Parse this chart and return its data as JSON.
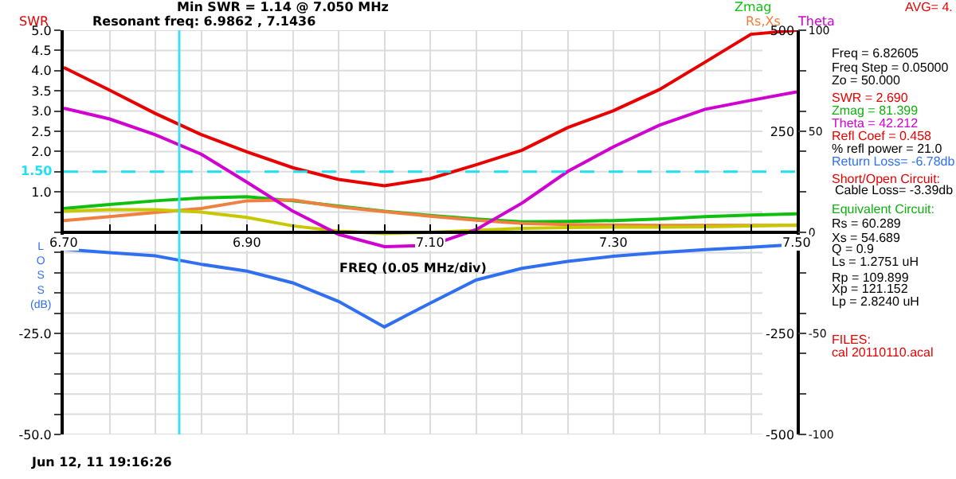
{
  "chart_data": [
    {
      "type": "line",
      "title": "Min SWR = 1.14 @ 7.050 MHz",
      "subtitle": "Resonant freq: 6.9862 , 7.1436",
      "xlabel": "FREQ (0.05 MHz/div)",
      "x": [
        6.7,
        6.75,
        6.8,
        6.85,
        6.9,
        6.95,
        7.0,
        7.05,
        7.1,
        7.15,
        7.2,
        7.25,
        7.3,
        7.35,
        7.4,
        7.45,
        7.5
      ],
      "xlim": [
        6.7,
        7.5
      ],
      "xticks": [
        {
          "value": 6.7,
          "label": "6.70"
        },
        {
          "value": 6.75,
          "label": null
        },
        {
          "value": 6.8,
          "label": null
        },
        {
          "value": 6.85,
          "label": null
        },
        {
          "value": 6.9,
          "label": "6.90"
        },
        {
          "value": 6.95,
          "label": null
        },
        {
          "value": 7.0,
          "label": null
        },
        {
          "value": 7.05,
          "label": null
        },
        {
          "value": 7.1,
          "label": "7.10"
        },
        {
          "value": 7.15,
          "label": null
        },
        {
          "value": 7.2,
          "label": null
        },
        {
          "value": 7.25,
          "label": null
        },
        {
          "value": 7.3,
          "label": "7.30"
        },
        {
          "value": 7.35,
          "label": null
        },
        {
          "value": 7.4,
          "label": null
        },
        {
          "value": 7.45,
          "label": null
        },
        {
          "value": 7.5,
          "label": "7.50"
        }
      ],
      "ylim": [
        0,
        5
      ],
      "yticks": [
        {
          "value": 0,
          "label": null
        },
        {
          "value": 0.5,
          "label": null
        },
        {
          "value": 1,
          "label": "1.0"
        },
        {
          "value": 1.5,
          "label": null
        },
        {
          "value": 2,
          "label": "2.0"
        },
        {
          "value": 2.5,
          "label": "2.5"
        },
        {
          "value": 3,
          "label": "3.0"
        },
        {
          "value": 3.5,
          "label": "3.5"
        },
        {
          "value": 4,
          "label": "4.0"
        },
        {
          "value": 4.5,
          "label": "4.5"
        },
        {
          "value": 5,
          "label": "5.0"
        }
      ],
      "y2lim": [
        -500,
        500
      ],
      "y2ticks": [
        -500,
        {
          "value": -400,
          "label": null
        },
        {
          "value": -300,
          "label": null
        },
        -250,
        {
          "value": -200,
          "label": null
        },
        {
          "value": -100,
          "label": null
        },
        {
          "value": 0,
          "label": null
        },
        {
          "value": 100,
          "label": null
        },
        {
          "value": 200,
          "label": null
        },
        250,
        {
          "value": 300,
          "label": null
        },
        {
          "value": 400,
          "label": null
        },
        500
      ],
      "y3lim": [
        -100,
        100
      ],
      "y3ticks": [
        -100,
        -50,
        0,
        50,
        100
      ],
      "series": [
        {
          "name": "SWR",
          "color": "#e80000",
          "values": [
            4.08,
            3.52,
            2.94,
            2.42,
            1.99,
            1.6,
            1.31,
            1.15,
            1.33,
            1.67,
            2.03,
            2.59,
            3.01,
            3.53,
            4.21,
            4.9,
            5.0
          ]
        },
        {
          "name": "Zmag",
          "color": "#10c010",
          "axis": "y2",
          "values": [
            59,
            69,
            78,
            85,
            88,
            78,
            65,
            52,
            42,
            33,
            26,
            27,
            29,
            33,
            39,
            43,
            46
          ]
        },
        {
          "name": "Rs,Xs",
          "color": "#f08040",
          "axis": "y2",
          "values": [
            29,
            39,
            49,
            59,
            78,
            80,
            63,
            51,
            40,
            30,
            22,
            19,
            18,
            17,
            17,
            17,
            17
          ]
        },
        {
          "color": "#c8c800",
          "axis": "y2",
          "values": [
            52,
            56,
            56,
            50,
            37,
            16,
            3,
            -3,
            0,
            5,
            10,
            12,
            13,
            13,
            14,
            16,
            18
          ]
        },
        {
          "name": "Theta",
          "color": "#d000d0",
          "axis": "y3",
          "values": [
            61.4,
            56.1,
            48.3,
            38.7,
            24.8,
            10.5,
            -1,
            -7.1,
            -6.5,
            1.3,
            14.4,
            30.1,
            42.3,
            53.0,
            60.9,
            65.3,
            69.5
          ]
        }
      ],
      "ref_lines": [
        {
          "axis": "x",
          "value": 6.82605,
          "color": "#40e0f0",
          "line_style": "solid"
        },
        {
          "axis": "y",
          "value": 1.5,
          "label": "1.50",
          "color": "#20e0f0",
          "line_style": "dashed"
        }
      ],
      "annotations": [
        "AVG= 4.",
        "Freq = 6.82605",
        "Freq Step = 0.05000",
        "Zo = 50.000",
        "SWR = 2.690",
        "Zmag = 81.399",
        "Theta = 42.212",
        "Refl Coef = 0.458",
        "% refl power = 21.0",
        "Return Loss= -6.78db",
        "Short/Open Circuit:",
        "Cable Loss= -3.39db",
        "Equivalent Circuit:",
        "Rs = 60.289",
        "Xs = 54.689",
        "Q = 0.9",
        "Ls = 1.2751 uH",
        "Rp = 109.899",
        "Xp = 121.152",
        "Lp = 2.8240 uH",
        "FILES:",
        "cal 20110110.acal",
        "Jun 12, 11 19:16:26"
      ],
      "grid": true,
      "legend": false,
      "marker": "none",
      "line_style": "solid"
    },
    {
      "type": "line",
      "ylabel": "LOSS (dB)",
      "x": [
        6.7,
        6.75,
        6.8,
        6.85,
        6.9,
        6.95,
        7.0,
        7.05,
        7.1,
        7.15,
        7.2,
        7.25,
        7.3,
        7.35,
        7.4,
        7.45,
        7.5
      ],
      "xlim": [
        6.7,
        7.5
      ],
      "ylim": [
        -50,
        0
      ],
      "yticks": [
        {
          "value": -50,
          "label": "-50.0"
        },
        {
          "value": -45,
          "label": null
        },
        {
          "value": -40,
          "label": null
        },
        {
          "value": -35,
          "label": null
        },
        {
          "value": -30,
          "label": null
        },
        {
          "value": -25,
          "label": "-25.0"
        },
        {
          "value": -20,
          "label": null
        },
        {
          "value": -15,
          "label": null
        },
        {
          "value": -10,
          "label": null
        },
        {
          "value": -5,
          "label": null
        },
        {
          "value": 0,
          "label": null
        }
      ],
      "series": [
        {
          "color": "#3070f0",
          "values": [
            -4.2,
            -5.0,
            -5.8,
            -7.9,
            -9.6,
            -12.5,
            -17.1,
            -23.4,
            -17.5,
            -11.8,
            -8.9,
            -7.2,
            -5.9,
            -5.0,
            -4.3,
            -3.7,
            -3.0
          ]
        }
      ],
      "grid": "y",
      "legend": false,
      "marker": "none",
      "line_style": "solid",
      "tick_labels": "y"
    }
  ]
}
